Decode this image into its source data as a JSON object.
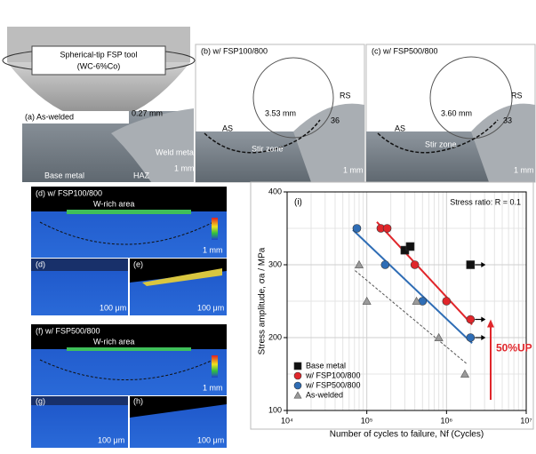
{
  "figure": {
    "tool": {
      "name": "Spherical-tip FSP tool",
      "material": "(WC-6%Co)"
    },
    "a": {
      "label": "(a) As-welded",
      "depth": "0.27 mm",
      "weld": "Weld metal",
      "base": "Base metal",
      "haz": "HAZ",
      "scale": "1 mm"
    },
    "b": {
      "label": "(b) w/ FSP100/800",
      "rs": "RS",
      "as": "AS",
      "radius": "3.53 mm",
      "angle": "36",
      "zone": "Stir zone",
      "scale": "1 mm"
    },
    "c": {
      "label": "(c) w/ FSP500/800",
      "rs": "RS",
      "as": "AS",
      "radius": "3.60 mm",
      "angle": "33",
      "zone": "Stir zone",
      "scale": "1 mm"
    },
    "d": {
      "label": "(d) w/ FSP100/800",
      "area": "W-rich area",
      "scale": "1 mm",
      "sub1": "(d)",
      "sub1scale": "100 μm",
      "sub2": "(e)",
      "sub2scale": "100 μm"
    },
    "f": {
      "label": "(f) w/ FSP500/800",
      "area": "W-rich area",
      "scale": "1 mm",
      "sub1": "(g)",
      "sub1scale": "100 μm",
      "sub2": "(h)",
      "sub2scale": "100 μm"
    }
  },
  "chart_data": {
    "type": "scatter",
    "panel": "(i)",
    "note": "Stress ratio: R = 0.1",
    "annotation": "50%UP",
    "xlabel": "Number of cycles to failure, Nf (Cycles)",
    "ylabel": "Stress amplitude, σa / MPa",
    "xscale": "log",
    "xlim": [
      10000,
      10000000
    ],
    "xticks": [
      {
        "value": 10000,
        "label": "10⁴"
      },
      {
        "value": 100000,
        "label": "10⁵"
      },
      {
        "value": 1000000,
        "label": "10⁶"
      },
      {
        "value": 10000000,
        "label": "10⁷"
      }
    ],
    "ylim": [
      100,
      400
    ],
    "yticks": [
      100,
      200,
      300,
      400
    ],
    "grid": true,
    "legend": "lower left",
    "series": [
      {
        "name": "Base metal",
        "color": "#111111",
        "marker": "square",
        "fit": null,
        "x": [
          300000,
          350000,
          2000000
        ],
        "values": [
          320,
          325,
          300
        ],
        "runout": [
          false,
          false,
          true
        ]
      },
      {
        "name": "w/ FSP100/800",
        "color": "#e0262b",
        "marker": "circle",
        "fit": "solid",
        "x": [
          150000,
          180000,
          400000,
          1000000,
          2000000
        ],
        "values": [
          350,
          350,
          300,
          250,
          225
        ],
        "runout": [
          false,
          false,
          false,
          false,
          true
        ]
      },
      {
        "name": "w/ FSP500/800",
        "color": "#2f6db5",
        "marker": "circle",
        "fit": "solid",
        "x": [
          75000,
          170000,
          500000,
          2000000
        ],
        "values": [
          350,
          300,
          250,
          200
        ],
        "runout": [
          false,
          false,
          false,
          true
        ]
      },
      {
        "name": "As-welded",
        "color": "#9a9a9a",
        "marker": "triangle",
        "fit": "dashed",
        "x": [
          80000,
          100000,
          420000,
          800000,
          1700000
        ],
        "values": [
          300,
          250,
          250,
          200,
          150
        ],
        "runout": [
          false,
          false,
          false,
          false,
          false
        ]
      }
    ]
  }
}
